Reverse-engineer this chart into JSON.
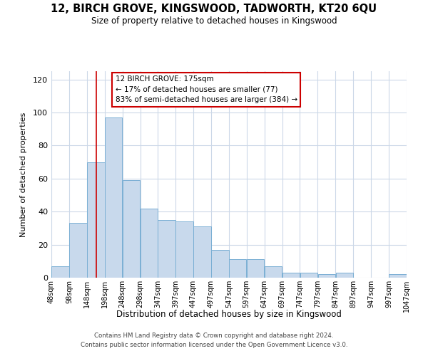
{
  "title": "12, BIRCH GROVE, KINGSWOOD, TADWORTH, KT20 6QU",
  "subtitle": "Size of property relative to detached houses in Kingswood",
  "xlabel": "Distribution of detached houses by size in Kingswood",
  "ylabel": "Number of detached properties",
  "bar_color": "#c8d9ec",
  "bar_edge_color": "#7aafd4",
  "background_color": "#ffffff",
  "grid_color": "#ccd8e8",
  "vline_color": "#cc0000",
  "vline_x": 175,
  "annotation_text": "12 BIRCH GROVE: 175sqm\n← 17% of detached houses are smaller (77)\n83% of semi-detached houses are larger (384) →",
  "annotation_box_color": "#ffffff",
  "annotation_box_edge": "#cc0000",
  "bin_edges": [
    48,
    98,
    148,
    198,
    248,
    298,
    347,
    397,
    447,
    497,
    547,
    597,
    647,
    697,
    747,
    797,
    847,
    897,
    947,
    997,
    1047
  ],
  "bar_heights": [
    7,
    33,
    70,
    97,
    59,
    42,
    35,
    34,
    31,
    17,
    11,
    11,
    7,
    3,
    3,
    2,
    3,
    0,
    0,
    2
  ],
  "ylim": [
    0,
    125
  ],
  "yticks": [
    0,
    20,
    40,
    60,
    80,
    100,
    120
  ],
  "xtick_labels": [
    "48sqm",
    "98sqm",
    "148sqm",
    "198sqm",
    "248sqm",
    "298sqm",
    "347sqm",
    "397sqm",
    "447sqm",
    "497sqm",
    "547sqm",
    "597sqm",
    "647sqm",
    "697sqm",
    "747sqm",
    "797sqm",
    "847sqm",
    "897sqm",
    "947sqm",
    "997sqm",
    "1047sqm"
  ],
  "footer_line1": "Contains HM Land Registry data © Crown copyright and database right 2024.",
  "footer_line2": "Contains public sector information licensed under the Open Government Licence v3.0.",
  "figsize": [
    6.0,
    5.0
  ],
  "dpi": 100
}
